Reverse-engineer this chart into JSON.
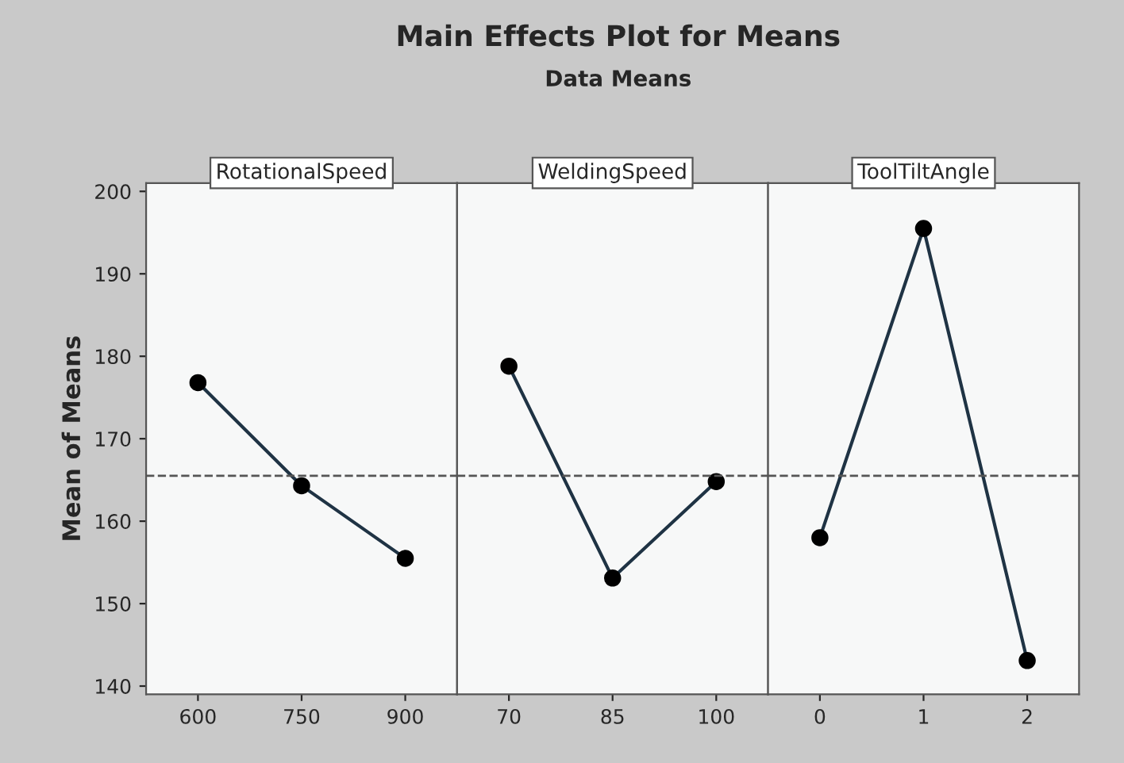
{
  "chart_data": [
    {
      "type": "line",
      "title": "RotationalSpeed",
      "ylabel": "Mean of Means",
      "annotations": [
        "Main Effects Plot for Means",
        "Data Means"
      ],
      "categories": [
        "600",
        "750",
        "900"
      ],
      "series": [
        {
          "color": "#1f3344",
          "values": [
            176.8,
            164.3,
            155.5
          ]
        }
      ],
      "ylim": [
        139,
        201
      ],
      "yticks": [
        140,
        150,
        160,
        170,
        180,
        190,
        200
      ],
      "marker": "circle",
      "line_style": "solid",
      "grid": false,
      "ref_lines": [
        {
          "axis": "y",
          "value": 165.5,
          "color": "#555555",
          "line_style": "dashed"
        }
      ]
    },
    {
      "type": "line",
      "title": "WeldingSpeed",
      "categories": [
        "70",
        "85",
        "100"
      ],
      "series": [
        {
          "color": "#1f3344",
          "values": [
            178.8,
            153.1,
            164.8
          ]
        }
      ],
      "ylim": [
        139,
        201
      ],
      "yticks": [
        140,
        150,
        160,
        170,
        180,
        190,
        200
      ],
      "tick_labels": "x",
      "marker": "circle",
      "line_style": "solid",
      "grid": false,
      "ref_lines": [
        {
          "axis": "y",
          "value": 165.5,
          "color": "#555555",
          "line_style": "dashed"
        }
      ]
    },
    {
      "type": "line",
      "title": "ToolTiltAngle",
      "categories": [
        "0",
        "1",
        "2"
      ],
      "series": [
        {
          "color": "#1f3344",
          "values": [
            158.0,
            195.5,
            143.1
          ]
        }
      ],
      "ylim": [
        139,
        201
      ],
      "yticks": [
        140,
        150,
        160,
        170,
        180,
        190,
        200
      ],
      "tick_labels": "x",
      "marker": "circle",
      "line_style": "solid",
      "grid": false,
      "ref_lines": [
        {
          "axis": "y",
          "value": 165.5,
          "color": "#555555",
          "line_style": "dashed"
        }
      ]
    }
  ]
}
